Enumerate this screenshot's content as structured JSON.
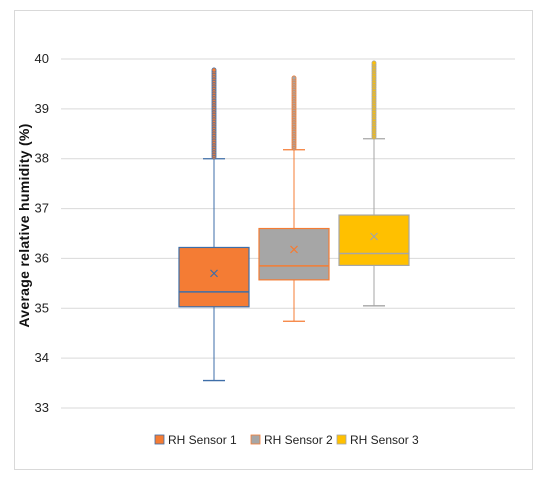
{
  "chart_data": {
    "type": "box",
    "title": "",
    "xlabel": "",
    "ylabel": "Average relative humidity (%)",
    "ylim": [
      33,
      40
    ],
    "yticks": [
      33,
      34,
      35,
      36,
      37,
      38,
      39,
      40
    ],
    "legend_position": "bottom",
    "grid": true,
    "series": [
      {
        "name": "RH Sensor 1",
        "color": "#F47C34",
        "edge_color": "#3E6EA8",
        "whisker_low": 33.55,
        "q1": 35.03,
        "median": 35.33,
        "mean": 35.7,
        "q3": 36.22,
        "whisker_high": 38.0,
        "outlier_range": [
          38.0,
          39.78
        ]
      },
      {
        "name": "RH Sensor 2",
        "color": "#A6A6A6",
        "edge_color": "#F47C34",
        "whisker_low": 34.74,
        "q1": 35.57,
        "median": 35.85,
        "mean": 36.18,
        "q3": 36.6,
        "whisker_high": 38.18,
        "outlier_range": [
          38.18,
          39.62
        ]
      },
      {
        "name": "RH Sensor 3",
        "color": "#FFC000",
        "edge_color": "#A6A6A6",
        "whisker_low": 35.05,
        "q1": 35.86,
        "median": 36.1,
        "mean": 36.44,
        "q3": 36.87,
        "whisker_high": 38.4,
        "outlier_range": [
          38.4,
          39.92
        ]
      }
    ]
  }
}
